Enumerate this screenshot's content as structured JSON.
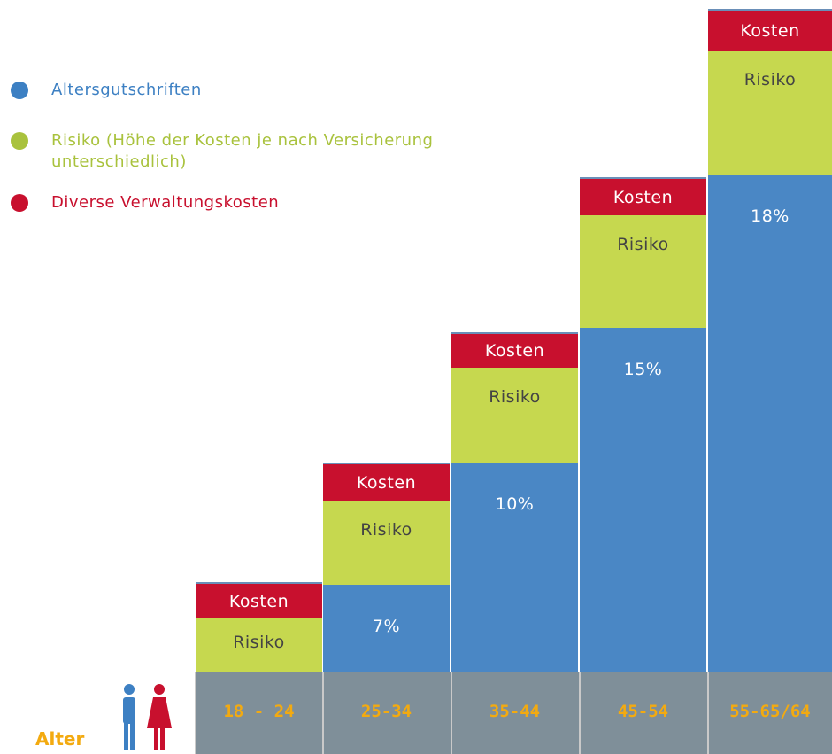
{
  "legend": [
    {
      "label": "Altersgutschriften",
      "color": "#3d80c3"
    },
    {
      "label": [
        "Risiko (Höhe der Kosten je nach Versicherung",
        "unterschiedlich)"
      ],
      "color": "#a9c23d"
    },
    {
      "label": "Diverse Verwaltungskosten",
      "color": "#c8102e"
    }
  ],
  "axis_label": "Alter",
  "columns": [
    {
      "category": "18 - 24",
      "costs": "Kosten",
      "risk": "Risiko"
    },
    {
      "category": "25-34",
      "costs": "Kosten",
      "risk": "Risiko",
      "credit": "7%"
    },
    {
      "category": "35-44",
      "costs": "Kosten",
      "risk": "Risiko",
      "credit": "10%"
    },
    {
      "category": "45-54",
      "costs": "Kosten",
      "risk": "Risiko",
      "credit": "15%"
    },
    {
      "category": "55-65/64",
      "costs": "Kosten",
      "risk": "Risiko",
      "credit": "18%"
    }
  ]
}
